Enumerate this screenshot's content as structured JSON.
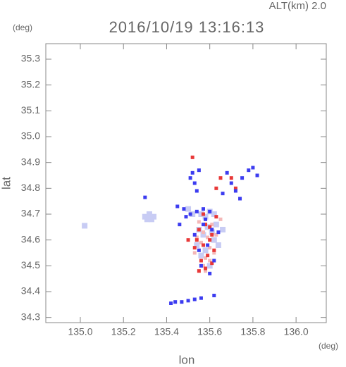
{
  "chart_data": {
    "type": "scatter",
    "title": "2016/10/19 13:16:13",
    "subtitle": "ALT(km) 2.0",
    "x_label": "lon",
    "y_label": "lat",
    "x_unit": "(deg)",
    "y_unit": "(deg)",
    "xlim": [
      134.84,
      136.14
    ],
    "ylim": [
      34.28,
      35.36
    ],
    "xticks": [
      {
        "value": 135.0,
        "label": "135.0"
      },
      {
        "value": 135.2,
        "label": "135.2"
      },
      {
        "value": 135.4,
        "label": "135.4"
      },
      {
        "value": 135.6,
        "label": "135.6"
      },
      {
        "value": 135.8,
        "label": "135.8"
      },
      {
        "value": 136.0,
        "label": "136.0"
      }
    ],
    "yticks": [
      {
        "value": 34.3,
        "label": "34.3"
      },
      {
        "value": 34.4,
        "label": "34.4"
      },
      {
        "value": 34.5,
        "label": "34.5"
      },
      {
        "value": 34.6,
        "label": "34.6"
      },
      {
        "value": 34.7,
        "label": "34.7"
      },
      {
        "value": 34.8,
        "label": "34.8"
      },
      {
        "value": 34.9,
        "label": "34.9"
      },
      {
        "value": 35.0,
        "label": "35.0"
      },
      {
        "value": 35.1,
        "label": "35.1"
      },
      {
        "value": 35.2,
        "label": "35.2"
      },
      {
        "value": 35.3,
        "label": "35.3"
      }
    ],
    "series": [
      {
        "color": "#c8ccf4",
        "x": [
          135.3,
          135.32,
          135.34,
          135.31,
          135.33,
          135.56,
          135.58,
          135.6,
          135.62,
          135.55,
          135.57,
          135.59,
          135.61,
          135.63,
          135.54,
          135.58,
          135.62,
          135.64,
          135.02,
          135.5,
          135.52,
          135.66,
          135.6,
          135.56
        ],
        "values": [
          34.69,
          34.7,
          34.69,
          34.68,
          34.68,
          34.7,
          34.69,
          34.71,
          34.7,
          34.64,
          34.62,
          34.65,
          34.63,
          34.66,
          34.58,
          34.56,
          34.6,
          34.58,
          34.655,
          34.72,
          34.7,
          34.64,
          34.5,
          34.54
        ]
      },
      {
        "color": "#f4b8b8",
        "x": [
          135.55,
          135.57,
          135.59,
          135.61,
          135.63,
          135.56,
          135.58,
          135.6,
          135.62,
          135.54,
          135.57,
          135.6,
          135.65,
          135.53,
          135.58
        ],
        "values": [
          34.67,
          34.63,
          34.61,
          34.66,
          34.62,
          34.59,
          34.53,
          34.57,
          34.55,
          34.61,
          34.5,
          34.52,
          34.68,
          34.55,
          34.48
        ]
      },
      {
        "color": "#e83838",
        "x": [
          135.55,
          135.58,
          135.61,
          135.63,
          135.57,
          135.6,
          135.54,
          135.59,
          135.62,
          135.56,
          135.58,
          135.61,
          135.53,
          135.6,
          135.52,
          135.65,
          135.63,
          135.7,
          135.72,
          135.5,
          135.57,
          135.55
        ],
        "values": [
          34.64,
          34.66,
          34.62,
          34.69,
          34.58,
          34.6,
          34.6,
          34.54,
          34.56,
          34.52,
          34.49,
          34.51,
          34.57,
          34.65,
          34.92,
          34.84,
          34.8,
          34.84,
          34.8,
          34.6,
          34.7,
          34.48
        ]
      },
      {
        "color": "#3c3cf0",
        "x": [
          135.53,
          135.57,
          135.61,
          135.55,
          135.59,
          135.62,
          135.56,
          135.6,
          135.58,
          135.64,
          135.52,
          135.53,
          135.54,
          135.51,
          135.55,
          135.68,
          135.7,
          135.72,
          135.75,
          135.78,
          135.8,
          135.82,
          135.66,
          135.74,
          135.45,
          135.48,
          135.51,
          135.54,
          135.57,
          135.6,
          135.42,
          135.44,
          135.47,
          135.5,
          135.53,
          135.56,
          135.62,
          135.3,
          135.46,
          135.49
        ],
        "values": [
          34.62,
          34.66,
          34.64,
          34.56,
          34.58,
          34.52,
          34.5,
          34.47,
          34.68,
          34.63,
          34.86,
          34.82,
          34.79,
          34.84,
          34.87,
          34.86,
          34.82,
          34.79,
          34.84,
          34.87,
          34.88,
          34.85,
          34.78,
          34.76,
          34.73,
          34.72,
          34.7,
          34.71,
          34.72,
          34.71,
          34.355,
          34.36,
          34.36,
          34.365,
          34.37,
          34.375,
          34.385,
          34.765,
          34.66,
          34.69
        ]
      }
    ]
  }
}
